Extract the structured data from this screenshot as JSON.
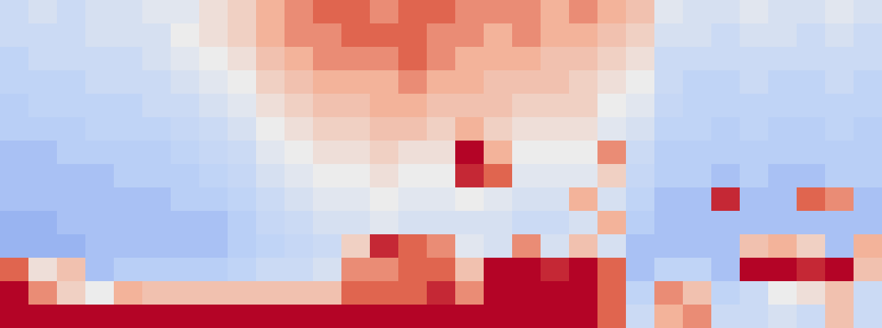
{
  "chart_data": {
    "type": "heatmap",
    "tick_labels": false,
    "grid": false,
    "zlim": [
      -1,
      1
    ],
    "cells": [
      [
        -0.3,
        -0.2,
        -0.3,
        -0.2,
        -0.2,
        -0.1,
        -0.1,
        0.1,
        0.2,
        0.4,
        0.5,
        0.6,
        0.6,
        0.5,
        0.6,
        0.6,
        0.5,
        0.5,
        0.5,
        0.4,
        0.5,
        0.4,
        0.3,
        -0.1,
        -0.2,
        -0.2,
        -0.1,
        -0.2,
        -0.2,
        -0.1,
        -0.2
      ],
      [
        -0.3,
        -0.3,
        -0.3,
        -0.2,
        -0.2,
        -0.2,
        0.0,
        0.1,
        0.2,
        0.4,
        0.5,
        0.5,
        0.6,
        0.6,
        0.6,
        0.5,
        0.5,
        0.4,
        0.5,
        0.4,
        0.4,
        0.3,
        0.2,
        -0.2,
        -0.2,
        -0.3,
        -0.2,
        -0.2,
        -0.3,
        -0.2,
        -0.3
      ],
      [
        -0.4,
        -0.3,
        -0.3,
        -0.3,
        -0.3,
        -0.2,
        -0.1,
        0.0,
        0.1,
        0.3,
        0.4,
        0.5,
        0.5,
        0.5,
        0.6,
        0.5,
        0.4,
        0.4,
        0.4,
        0.3,
        0.3,
        0.2,
        0.1,
        -0.3,
        -0.3,
        -0.3,
        -0.3,
        -0.3,
        -0.3,
        -0.3,
        -0.3
      ],
      [
        -0.4,
        -0.4,
        -0.4,
        -0.3,
        -0.3,
        -0.3,
        -0.2,
        -0.1,
        0.0,
        0.2,
        0.3,
        0.4,
        0.4,
        0.4,
        0.5,
        0.4,
        0.4,
        0.3,
        0.3,
        0.3,
        0.2,
        0.1,
        0.0,
        -0.3,
        -0.4,
        -0.4,
        -0.3,
        -0.4,
        -0.4,
        -0.3,
        -0.4
      ],
      [
        -0.45,
        -0.4,
        -0.4,
        -0.4,
        -0.4,
        -0.3,
        -0.3,
        -0.2,
        -0.1,
        0.1,
        0.2,
        0.3,
        0.3,
        0.4,
        0.4,
        0.3,
        0.3,
        0.3,
        0.2,
        0.2,
        0.2,
        0.0,
        -0.1,
        -0.35,
        -0.4,
        -0.4,
        -0.4,
        -0.4,
        -0.4,
        -0.4,
        -0.4
      ],
      [
        -0.45,
        -0.45,
        -0.45,
        -0.4,
        -0.4,
        -0.4,
        -0.35,
        -0.3,
        -0.2,
        0.0,
        0.1,
        0.2,
        0.2,
        0.3,
        0.3,
        0.2,
        0.4,
        0.2,
        0.1,
        0.1,
        0.1,
        -0.1,
        -0.2,
        -0.4,
        -0.4,
        -0.45,
        -0.4,
        -0.45,
        -0.45,
        -0.4,
        -0.45
      ],
      [
        -0.5,
        -0.5,
        -0.45,
        -0.45,
        -0.45,
        -0.45,
        -0.4,
        -0.35,
        -0.3,
        -0.1,
        0.0,
        0.1,
        0.1,
        0.2,
        0.1,
        0.1,
        0.8,
        0.4,
        0.0,
        0.0,
        0.0,
        0.5,
        -0.3,
        -0.45,
        -0.45,
        -0.45,
        -0.45,
        -0.45,
        -0.45,
        -0.45,
        -0.45
      ],
      [
        -0.5,
        -0.5,
        -0.5,
        -0.5,
        -0.45,
        -0.45,
        -0.45,
        -0.4,
        -0.35,
        -0.2,
        -0.1,
        0.0,
        0.0,
        0.1,
        0.0,
        0.0,
        0.7,
        0.6,
        -0.1,
        -0.1,
        -0.1,
        0.2,
        -0.35,
        -0.45,
        -0.45,
        -0.5,
        -0.45,
        -0.5,
        -0.5,
        -0.45,
        -0.45
      ],
      [
        -0.5,
        -0.5,
        -0.5,
        -0.5,
        -0.5,
        -0.5,
        -0.45,
        -0.45,
        -0.4,
        -0.3,
        -0.2,
        -0.1,
        -0.1,
        0.0,
        -0.1,
        -0.1,
        0.0,
        -0.1,
        -0.2,
        -0.2,
        0.4,
        -0.2,
        -0.4,
        -0.5,
        -0.5,
        0.7,
        -0.5,
        -0.5,
        0.6,
        0.5,
        -0.5
      ],
      [
        -0.55,
        -0.55,
        -0.5,
        -0.5,
        -0.5,
        -0.5,
        -0.5,
        -0.5,
        -0.45,
        -0.35,
        -0.3,
        -0.2,
        -0.2,
        -0.1,
        -0.2,
        -0.2,
        -0.2,
        -0.2,
        -0.3,
        -0.3,
        -0.2,
        0.4,
        -0.45,
        -0.5,
        -0.5,
        -0.5,
        -0.5,
        -0.5,
        -0.5,
        -0.5,
        -0.5
      ],
      [
        -0.55,
        -0.55,
        -0.55,
        -0.5,
        -0.5,
        -0.5,
        -0.5,
        -0.5,
        -0.45,
        -0.4,
        -0.35,
        -0.3,
        0.2,
        0.7,
        0.6,
        0.5,
        -0.1,
        -0.2,
        0.5,
        -0.2,
        0.3,
        -0.2,
        -0.5,
        -0.5,
        -0.5,
        -0.5,
        0.3,
        0.4,
        0.2,
        -0.5,
        0.4
      ],
      [
        0.6,
        0.1,
        0.3,
        -0.5,
        -0.45,
        -0.45,
        -0.45,
        -0.45,
        -0.4,
        -0.3,
        -0.3,
        -0.2,
        0.5,
        0.5,
        0.6,
        0.6,
        0.3,
        0.8,
        0.8,
        0.7,
        0.8,
        0.6,
        -0.5,
        -0.4,
        -0.4,
        -0.5,
        0.8,
        0.8,
        0.7,
        0.8,
        0.3
      ],
      [
        0.9,
        0.5,
        0.2,
        0.0,
        0.4,
        0.3,
        0.3,
        0.3,
        0.3,
        0.3,
        0.3,
        0.3,
        0.6,
        0.6,
        0.6,
        0.7,
        0.5,
        0.9,
        0.9,
        0.8,
        0.9,
        0.6,
        -0.4,
        0.5,
        0.3,
        -0.4,
        -0.3,
        0.0,
        0.1,
        0.3,
        -0.3
      ],
      [
        0.95,
        0.95,
        0.95,
        0.95,
        0.95,
        0.95,
        0.95,
        0.95,
        0.95,
        0.95,
        0.95,
        0.95,
        0.95,
        0.8,
        0.8,
        0.8,
        0.8,
        0.9,
        0.9,
        0.9,
        0.9,
        0.6,
        -0.3,
        0.4,
        0.5,
        -0.3,
        -0.3,
        -0.2,
        -0.3,
        0.3,
        -0.3
      ]
    ]
  }
}
